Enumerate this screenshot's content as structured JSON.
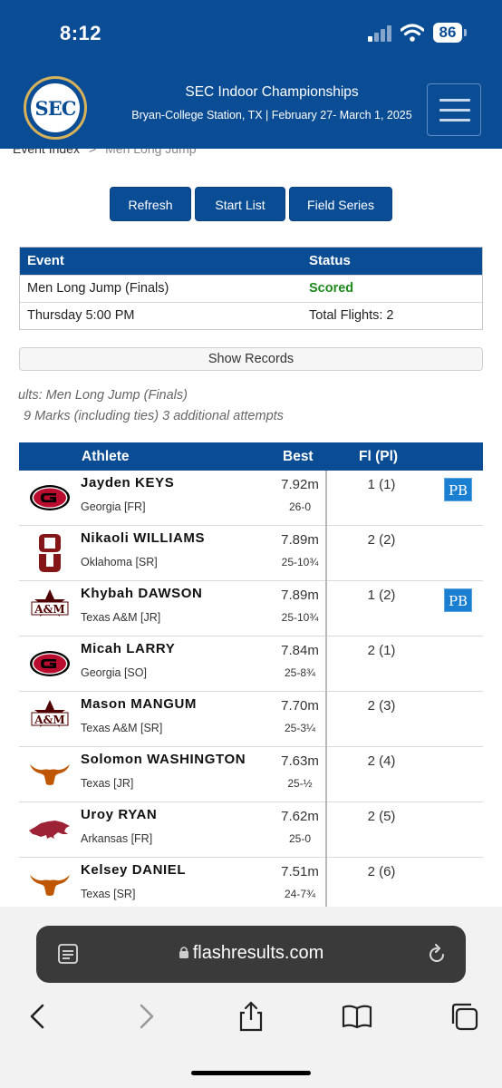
{
  "status_bar": {
    "time": "8:12",
    "battery": "86"
  },
  "header": {
    "logo_text": "SEC",
    "title": "SEC Indoor Championships",
    "subtitle": "Bryan-College Station, TX | February 27- March 1, 2025"
  },
  "breadcrumb": {
    "parent": "Event Index",
    "separator": ">",
    "current": "Men Long Jump"
  },
  "buttons": {
    "refresh": "Refresh",
    "start_list": "Start List",
    "field_series": "Field Series"
  },
  "event_table": {
    "headers": {
      "event": "Event",
      "status": "Status"
    },
    "rows": [
      {
        "left": "Men Long Jump (Finals)",
        "right": "Scored"
      },
      {
        "left": "Thursday 5:00 PM",
        "right": "Total Flights: 2"
      }
    ]
  },
  "show_records": "Show Records",
  "results_title": "ults: Men Long Jump (Finals)",
  "results_marks": "9 Marks (including ties) 3 additional attempts",
  "results": {
    "headers": {
      "athlete": "Athlete",
      "best": "Best",
      "fl": "Fl (Pl)"
    },
    "rows": [
      {
        "name": "Jayden KEYS",
        "team": "Georgia [FR]",
        "mark": "7.92m",
        "imperial": "26-0",
        "fl": "1 (1)",
        "pb": "PB",
        "logo": "georgia-logo-icon"
      },
      {
        "name": "Nikaoli WILLIAMS",
        "team": "Oklahoma [SR]",
        "mark": "7.89m",
        "imperial": "25-10¾",
        "fl": "2 (2)",
        "pb": "",
        "logo": "oklahoma-logo-icon"
      },
      {
        "name": "Khybah DAWSON",
        "team": "Texas A&M [JR]",
        "mark": "7.89m",
        "imperial": "25-10¾",
        "fl": "1 (2)",
        "pb": "PB",
        "logo": "texas-am-logo-icon"
      },
      {
        "name": "Micah LARRY",
        "team": "Georgia [SO]",
        "mark": "7.84m",
        "imperial": "25-8¾",
        "fl": "2 (1)",
        "pb": "",
        "logo": "georgia-logo-icon"
      },
      {
        "name": "Mason MANGUM",
        "team": "Texas A&M [SR]",
        "mark": "7.70m",
        "imperial": "25-3¼",
        "fl": "2 (3)",
        "pb": "",
        "logo": "texas-am-logo-icon"
      },
      {
        "name": "Solomon WASHINGTON",
        "team": "Texas [JR]",
        "mark": "7.63m",
        "imperial": "25-½",
        "fl": "2 (4)",
        "pb": "",
        "logo": "texas-longhorn-logo-icon"
      },
      {
        "name": "Uroy RYAN",
        "team": "Arkansas [FR]",
        "mark": "7.62m",
        "imperial": "25-0",
        "fl": "2 (5)",
        "pb": "",
        "logo": "arkansas-razorback-logo-icon"
      },
      {
        "name": "Kelsey DANIEL",
        "team": "Texas [SR]",
        "mark": "7.51m",
        "imperial": "24-7¾",
        "fl": "2 (6)",
        "pb": "",
        "logo": "texas-longhorn-logo-icon"
      }
    ]
  },
  "browser": {
    "url": "flashresults.com"
  },
  "colors": {
    "header_blue": "#0b4d95",
    "scored_green": "#1e8a1e",
    "pb_blue": "#1a7fd0",
    "georgia_red": "#ba0c2f",
    "oklahoma_crimson": "#841617",
    "aggie_maroon": "#500000",
    "longhorn_orange": "#bf5700",
    "razorback_red": "#9d2235"
  }
}
